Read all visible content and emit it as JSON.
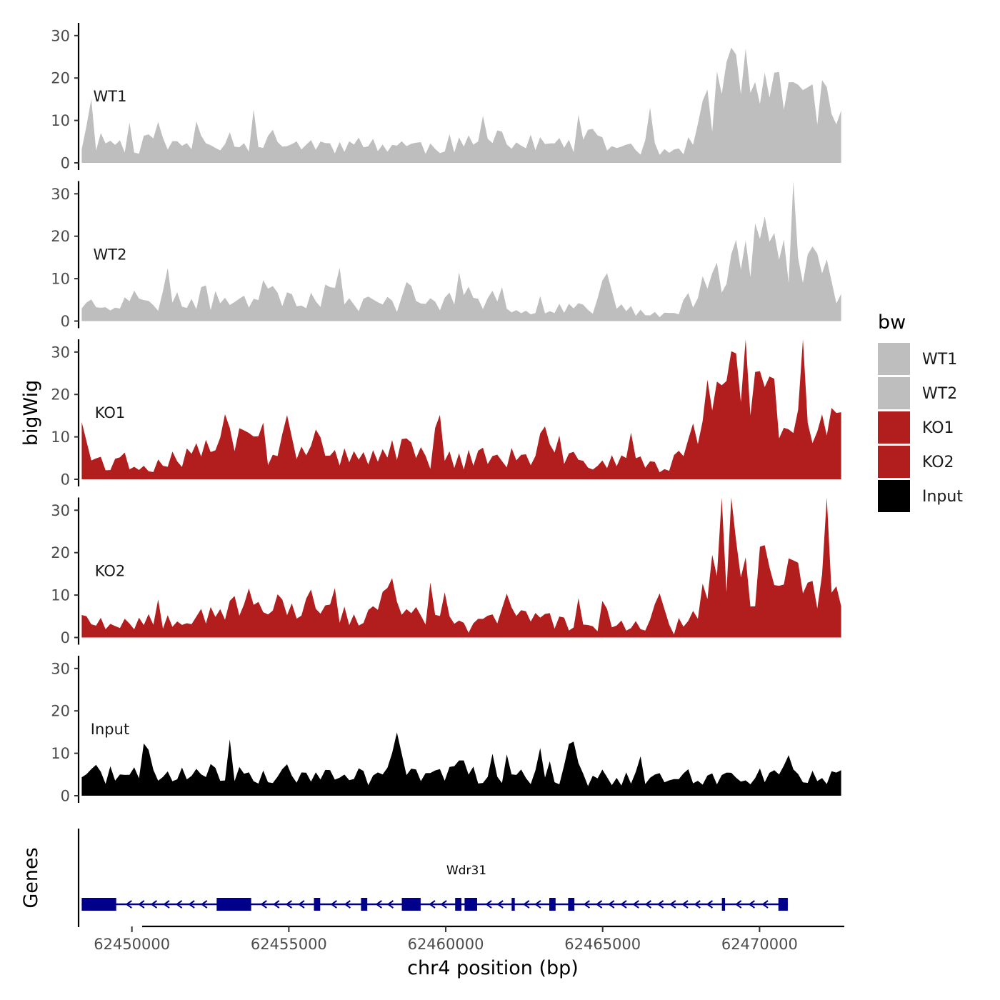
{
  "chart_data": {
    "type": "area",
    "title": "",
    "xlabel": "chr4 position (bp)",
    "ylabel": "bigWig",
    "genes_label": "Genes",
    "xlim": [
      62448300,
      62472700
    ],
    "x_ticks": [
      62450000,
      62455000,
      62460000,
      62465000,
      62470000
    ],
    "x_tick_labels": [
      "62450000",
      "62455000",
      "62460000",
      "62465000",
      "62470000"
    ],
    "ylim": [
      0,
      33
    ],
    "y_ticks": [
      0,
      10,
      20,
      30
    ],
    "y_tick_labels": [
      "0",
      "10",
      "20",
      "30"
    ],
    "x_start": 62448400,
    "x_end": 62472600,
    "bin_count": 160,
    "legend": {
      "title": "bw",
      "position": "right",
      "entries": [
        {
          "label": "WT1",
          "color": "#bebebe"
        },
        {
          "label": "WT2",
          "color": "#bebebe"
        },
        {
          "label": "KO1",
          "color": "#b21e1e"
        },
        {
          "label": "KO2",
          "color": "#b21e1e"
        },
        {
          "label": "Input",
          "color": "#000000"
        }
      ]
    },
    "series": [
      {
        "name": "WT1",
        "color": "#bebebe",
        "profile": [
          [
            0,
            4.5
          ],
          [
            0.03,
            5.5
          ],
          [
            0.06,
            4.0
          ],
          [
            0.09,
            4.5
          ],
          [
            0.12,
            4.0
          ],
          [
            0.15,
            4.5
          ],
          [
            0.18,
            6.0
          ],
          [
            0.21,
            5.5
          ],
          [
            0.24,
            4.0
          ],
          [
            0.27,
            4.5
          ],
          [
            0.3,
            4.5
          ],
          [
            0.33,
            4.0
          ],
          [
            0.36,
            4.0
          ],
          [
            0.39,
            4.5
          ],
          [
            0.42,
            4.0
          ],
          [
            0.45,
            3.8
          ],
          [
            0.48,
            4.5
          ],
          [
            0.51,
            4.2
          ],
          [
            0.54,
            4.5
          ],
          [
            0.57,
            4.0
          ],
          [
            0.6,
            4.5
          ],
          [
            0.63,
            4.0
          ],
          [
            0.66,
            4.5
          ],
          [
            0.69,
            4.0
          ],
          [
            0.72,
            4.0
          ],
          [
            0.75,
            4.0
          ],
          [
            0.78,
            3.0
          ],
          [
            0.8,
            4.0
          ],
          [
            0.82,
            12.0
          ],
          [
            0.84,
            16.5
          ],
          [
            0.86,
            19.0
          ],
          [
            0.88,
            17.0
          ],
          [
            0.9,
            16.0
          ],
          [
            0.92,
            15.0
          ],
          [
            0.94,
            14.5
          ],
          [
            0.96,
            12.5
          ],
          [
            0.98,
            10.0
          ],
          [
            1.0,
            9.0
          ]
        ],
        "noise": 0.55,
        "peaks": [
          [
            0.09,
            7.5
          ],
          [
            0.155,
            7.0
          ],
          [
            0.25,
            8.5
          ],
          [
            0.42,
            5.5
          ],
          [
            0.55,
            9.0
          ],
          [
            0.67,
            9.5
          ],
          [
            0.85,
            23.5
          ],
          [
            0.86,
            28.0
          ],
          [
            0.9,
            22.0
          ],
          [
            0.94,
            22.5
          ],
          [
            0.98,
            19.0
          ]
        ],
        "seed": 11
      },
      {
        "name": "WT2",
        "color": "#bebebe",
        "profile": [
          [
            0,
            4.0
          ],
          [
            0.03,
            4.5
          ],
          [
            0.06,
            3.8
          ],
          [
            0.09,
            3.5
          ],
          [
            0.12,
            4.5
          ],
          [
            0.15,
            5.0
          ],
          [
            0.18,
            4.5
          ],
          [
            0.21,
            5.0
          ],
          [
            0.24,
            6.5
          ],
          [
            0.27,
            6.5
          ],
          [
            0.3,
            5.5
          ],
          [
            0.33,
            4.5
          ],
          [
            0.36,
            4.0
          ],
          [
            0.39,
            4.5
          ],
          [
            0.42,
            3.5
          ],
          [
            0.45,
            3.5
          ],
          [
            0.48,
            4.5
          ],
          [
            0.51,
            4.5
          ],
          [
            0.54,
            3.5
          ],
          [
            0.57,
            2.5
          ],
          [
            0.6,
            3.0
          ],
          [
            0.63,
            3.5
          ],
          [
            0.66,
            3.5
          ],
          [
            0.69,
            3.0
          ],
          [
            0.72,
            2.5
          ],
          [
            0.75,
            2.0
          ],
          [
            0.78,
            1.5
          ],
          [
            0.8,
            5.0
          ],
          [
            0.82,
            9.0
          ],
          [
            0.84,
            12.5
          ],
          [
            0.86,
            16.0
          ],
          [
            0.88,
            18.0
          ],
          [
            0.9,
            17.0
          ],
          [
            0.92,
            14.5
          ],
          [
            0.94,
            13.0
          ],
          [
            0.96,
            10.0
          ],
          [
            0.98,
            7.0
          ],
          [
            1.0,
            6.0
          ]
        ],
        "noise": 0.5,
        "peaks": [
          [
            0.07,
            7.5
          ],
          [
            0.25,
            9.0
          ],
          [
            0.33,
            9.5
          ],
          [
            0.43,
            10.5
          ],
          [
            0.54,
            7.5
          ],
          [
            0.69,
            12.5
          ],
          [
            0.86,
            21.0
          ],
          [
            0.9,
            25.5
          ],
          [
            0.96,
            20.0
          ],
          [
            0.98,
            15.5
          ]
        ],
        "seed": 23
      },
      {
        "name": "KO1",
        "color": "#b21e1e",
        "profile": [
          [
            0,
            6.0
          ],
          [
            0.03,
            4.0
          ],
          [
            0.06,
            3.5
          ],
          [
            0.09,
            3.5
          ],
          [
            0.12,
            4.5
          ],
          [
            0.15,
            5.5
          ],
          [
            0.18,
            8.5
          ],
          [
            0.21,
            8.0
          ],
          [
            0.24,
            6.5
          ],
          [
            0.27,
            5.5
          ],
          [
            0.3,
            5.5
          ],
          [
            0.33,
            5.0
          ],
          [
            0.36,
            4.5
          ],
          [
            0.39,
            5.5
          ],
          [
            0.42,
            5.0
          ],
          [
            0.45,
            5.5
          ],
          [
            0.48,
            4.5
          ],
          [
            0.51,
            5.0
          ],
          [
            0.54,
            5.0
          ],
          [
            0.57,
            5.0
          ],
          [
            0.6,
            4.5
          ],
          [
            0.63,
            4.0
          ],
          [
            0.66,
            4.5
          ],
          [
            0.69,
            4.0
          ],
          [
            0.72,
            4.5
          ],
          [
            0.75,
            4.0
          ],
          [
            0.78,
            2.5
          ],
          [
            0.8,
            7.5
          ],
          [
            0.82,
            14.5
          ],
          [
            0.84,
            18.5
          ],
          [
            0.86,
            21.0
          ],
          [
            0.88,
            19.5
          ],
          [
            0.9,
            17.0
          ],
          [
            0.92,
            15.0
          ],
          [
            0.94,
            14.5
          ],
          [
            0.96,
            15.5
          ],
          [
            0.98,
            14.0
          ],
          [
            1.0,
            13.0
          ]
        ],
        "noise": 0.55,
        "peaks": [
          [
            0.0,
            13.5
          ],
          [
            0.19,
            16.5
          ],
          [
            0.27,
            15.5
          ],
          [
            0.31,
            13.0
          ],
          [
            0.43,
            11.0
          ],
          [
            0.61,
            12.5
          ],
          [
            0.84,
            26.0
          ],
          [
            0.86,
            31.5
          ],
          [
            0.89,
            30.5
          ],
          [
            0.95,
            19.5
          ],
          [
            0.99,
            19.5
          ]
        ],
        "seed": 37
      },
      {
        "name": "KO2",
        "color": "#b21e1e",
        "profile": [
          [
            0,
            4.5
          ],
          [
            0.03,
            4.0
          ],
          [
            0.06,
            3.8
          ],
          [
            0.09,
            4.0
          ],
          [
            0.12,
            5.0
          ],
          [
            0.15,
            6.0
          ],
          [
            0.18,
            7.0
          ],
          [
            0.21,
            7.5
          ],
          [
            0.24,
            7.5
          ],
          [
            0.27,
            6.5
          ],
          [
            0.3,
            6.0
          ],
          [
            0.33,
            5.5
          ],
          [
            0.36,
            5.0
          ],
          [
            0.39,
            5.0
          ],
          [
            0.42,
            6.5
          ],
          [
            0.45,
            4.5
          ],
          [
            0.48,
            3.5
          ],
          [
            0.51,
            2.0
          ],
          [
            0.54,
            4.5
          ],
          [
            0.57,
            4.5
          ],
          [
            0.6,
            4.0
          ],
          [
            0.63,
            3.5
          ],
          [
            0.66,
            3.5
          ],
          [
            0.69,
            2.5
          ],
          [
            0.72,
            3.0
          ],
          [
            0.75,
            3.5
          ],
          [
            0.78,
            1.5
          ],
          [
            0.8,
            6.5
          ],
          [
            0.82,
            10.5
          ],
          [
            0.84,
            14.0
          ],
          [
            0.86,
            15.5
          ],
          [
            0.88,
            14.5
          ],
          [
            0.9,
            13.5
          ],
          [
            0.92,
            12.5
          ],
          [
            0.94,
            12.5
          ],
          [
            0.96,
            11.5
          ],
          [
            0.98,
            10.5
          ],
          [
            1.0,
            10.0
          ]
        ],
        "noise": 0.55,
        "peaks": [
          [
            0.26,
            11.5
          ],
          [
            0.3,
            12.0
          ],
          [
            0.4,
            13.5
          ],
          [
            0.56,
            10.5
          ],
          [
            0.76,
            11.0
          ],
          [
            0.86,
            24.5
          ],
          [
            0.9,
            22.5
          ],
          [
            0.94,
            21.5
          ],
          [
            0.98,
            17.5
          ]
        ],
        "seed": 53
      },
      {
        "name": "Input",
        "color": "#000000",
        "profile": [
          [
            0,
            5.5
          ],
          [
            0.03,
            5.0
          ],
          [
            0.06,
            4.5
          ],
          [
            0.09,
            5.0
          ],
          [
            0.12,
            4.5
          ],
          [
            0.15,
            5.0
          ],
          [
            0.18,
            5.5
          ],
          [
            0.21,
            5.5
          ],
          [
            0.24,
            5.0
          ],
          [
            0.27,
            4.5
          ],
          [
            0.3,
            4.5
          ],
          [
            0.33,
            4.5
          ],
          [
            0.36,
            5.0
          ],
          [
            0.39,
            4.0
          ],
          [
            0.42,
            5.5
          ],
          [
            0.45,
            5.5
          ],
          [
            0.48,
            5.0
          ],
          [
            0.51,
            5.0
          ],
          [
            0.54,
            4.5
          ],
          [
            0.57,
            4.5
          ],
          [
            0.6,
            4.5
          ],
          [
            0.63,
            4.5
          ],
          [
            0.66,
            4.0
          ],
          [
            0.69,
            4.5
          ],
          [
            0.72,
            4.0
          ],
          [
            0.75,
            4.0
          ],
          [
            0.78,
            3.5
          ],
          [
            0.8,
            4.0
          ],
          [
            0.82,
            4.0
          ],
          [
            0.84,
            4.5
          ],
          [
            0.86,
            4.5
          ],
          [
            0.88,
            4.5
          ],
          [
            0.9,
            4.5
          ],
          [
            0.92,
            4.5
          ],
          [
            0.94,
            4.5
          ],
          [
            0.96,
            4.5
          ],
          [
            0.98,
            4.5
          ],
          [
            1.0,
            5.0
          ]
        ],
        "noise": 0.45,
        "peaks": [
          [
            0.415,
            15.0
          ],
          [
            0.5,
            10.0
          ],
          [
            0.645,
            15.0
          ],
          [
            0.93,
            10.0
          ]
        ],
        "seed": 71
      }
    ],
    "gene": {
      "name": "Wdr31",
      "strand": "-",
      "color": "#00008b",
      "start": 62448400,
      "end": 62470900,
      "exons": [
        {
          "start": 62448400,
          "end": 62449500,
          "kind": "utr"
        },
        {
          "start": 62452700,
          "end": 62453800,
          "kind": "coding"
        },
        {
          "start": 62455800,
          "end": 62456000,
          "kind": "coding"
        },
        {
          "start": 62457300,
          "end": 62457500,
          "kind": "coding"
        },
        {
          "start": 62458600,
          "end": 62459200,
          "kind": "coding"
        },
        {
          "start": 62460300,
          "end": 62460500,
          "kind": "coding"
        },
        {
          "start": 62460600,
          "end": 62461000,
          "kind": "coding"
        },
        {
          "start": 62462100,
          "end": 62462200,
          "kind": "coding"
        },
        {
          "start": 62463300,
          "end": 62463500,
          "kind": "coding"
        },
        {
          "start": 62463900,
          "end": 62464100,
          "kind": "coding"
        },
        {
          "start": 62468800,
          "end": 62468900,
          "kind": "coding"
        },
        {
          "start": 62470600,
          "end": 62470900,
          "kind": "coding"
        }
      ]
    }
  }
}
